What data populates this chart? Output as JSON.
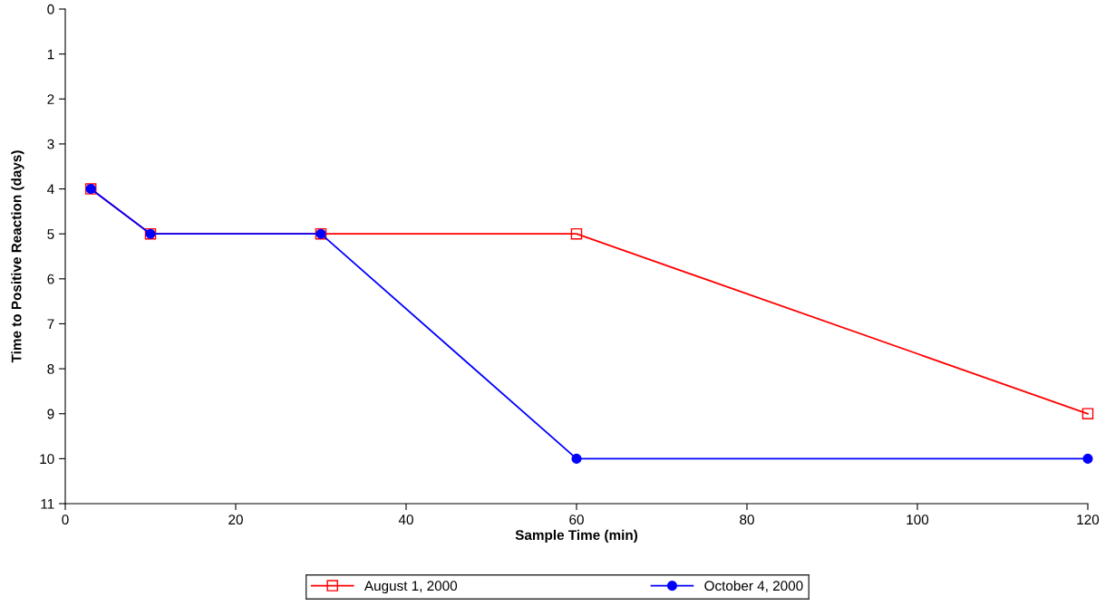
{
  "chart_data": {
    "type": "line",
    "xlabel": "Sample Time (min)",
    "ylabel": "Time to Positive Reaction (days)",
    "x": [
      3,
      10,
      30,
      60,
      120
    ],
    "series": [
      {
        "name": "August 1, 2000",
        "color": "#ff0000",
        "marker": "square",
        "values": [
          4,
          5,
          5,
          5,
          9
        ]
      },
      {
        "name": "October 4, 2000",
        "color": "#0000ff",
        "marker": "circle",
        "values": [
          4,
          5,
          5,
          10,
          10
        ]
      }
    ],
    "xlim": [
      0,
      120
    ],
    "xticks": [
      0,
      20,
      40,
      60,
      80,
      100,
      120
    ],
    "ylim": [
      11,
      0
    ],
    "yticks": [
      0,
      1,
      2,
      3,
      4,
      5,
      6,
      7,
      8,
      9,
      10,
      11
    ],
    "grid": false,
    "legend": "bottom",
    "line_style": "solid"
  }
}
